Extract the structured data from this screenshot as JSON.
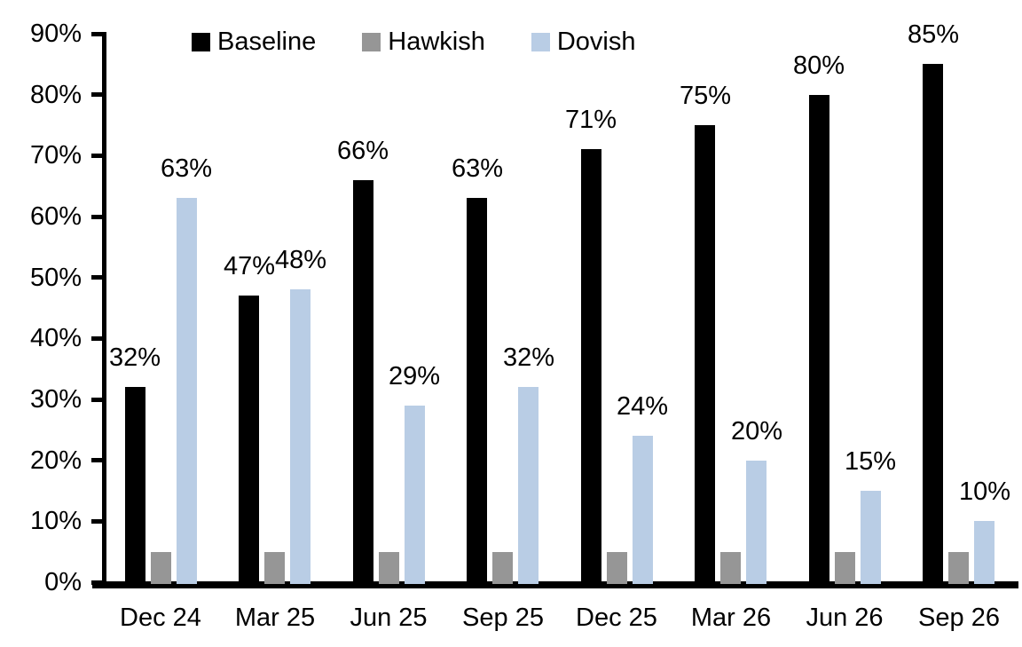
{
  "chart_data": {
    "type": "bar",
    "title": "",
    "xlabel": "",
    "ylabel": "",
    "categories": [
      "Dec 24",
      "Mar 25",
      "Jun 25",
      "Sep 25",
      "Dec 25",
      "Mar 26",
      "Jun 26",
      "Sep 26"
    ],
    "series": [
      {
        "name": "Baseline",
        "color": "#000000",
        "values": [
          32,
          47,
          66,
          63,
          71,
          75,
          80,
          85
        ],
        "data_labels": [
          "32%",
          "47%",
          "66%",
          "63%",
          "71%",
          "75%",
          "80%",
          "85%"
        ],
        "show_labels": true
      },
      {
        "name": "Hawkish",
        "color": "#969696",
        "values": [
          5,
          5,
          5,
          5,
          5,
          5,
          5,
          5
        ],
        "data_labels": [],
        "show_labels": false
      },
      {
        "name": "Dovish",
        "color": "#b9cde5",
        "values": [
          63,
          48,
          29,
          32,
          24,
          20,
          15,
          10
        ],
        "data_labels": [
          "63%",
          "48%",
          "29%",
          "32%",
          "24%",
          "20%",
          "15%",
          "10%"
        ],
        "show_labels": true
      }
    ],
    "ylim": [
      0,
      90
    ],
    "ytick_step": 10,
    "ytick_labels": [
      "0%",
      "10%",
      "20%",
      "30%",
      "40%",
      "50%",
      "60%",
      "70%",
      "80%",
      "90%"
    ],
    "legend_position": "top-center",
    "grid": false,
    "axis_color": "#000000",
    "background_color": "#ffffff"
  }
}
